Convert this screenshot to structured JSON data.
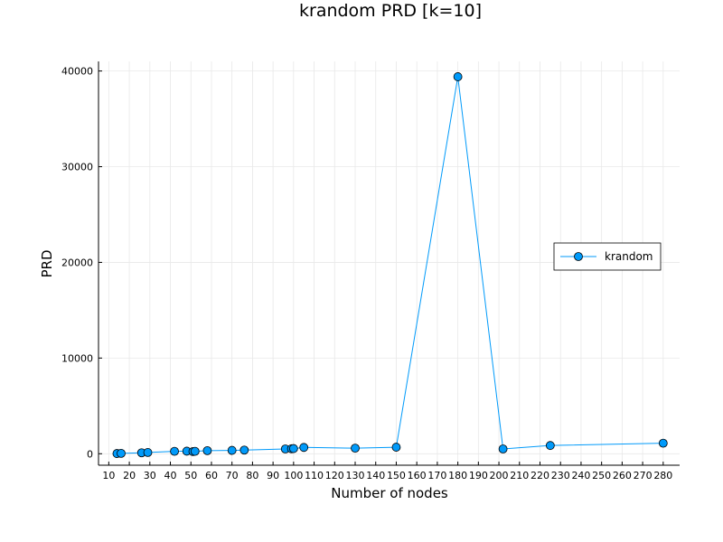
{
  "chart_data": {
    "type": "line",
    "title": "krandom PRD [k=10]",
    "xlabel": "Number of nodes",
    "ylabel": "PRD",
    "xlim": [
      5,
      288
    ],
    "ylim": [
      -1200,
      41000
    ],
    "xticks": [
      10,
      20,
      30,
      40,
      50,
      60,
      70,
      80,
      90,
      100,
      110,
      120,
      130,
      140,
      150,
      160,
      170,
      180,
      190,
      200,
      210,
      220,
      230,
      240,
      250,
      260,
      270,
      280
    ],
    "yticks": [
      0,
      10000,
      20000,
      30000,
      40000
    ],
    "grid": true,
    "legend_position": "right",
    "series": [
      {
        "name": "krandom",
        "color": "#009AFA",
        "marker": "circle",
        "x": [
          14,
          16,
          26,
          29,
          42,
          48,
          51,
          52,
          58,
          70,
          76,
          96,
          99,
          100,
          105,
          130,
          150,
          180,
          202,
          225,
          280
        ],
        "y": [
          20,
          40,
          100,
          130,
          250,
          270,
          230,
          250,
          320,
          350,
          380,
          500,
          520,
          540,
          660,
          580,
          680,
          39400,
          500,
          860,
          1100
        ]
      }
    ]
  }
}
